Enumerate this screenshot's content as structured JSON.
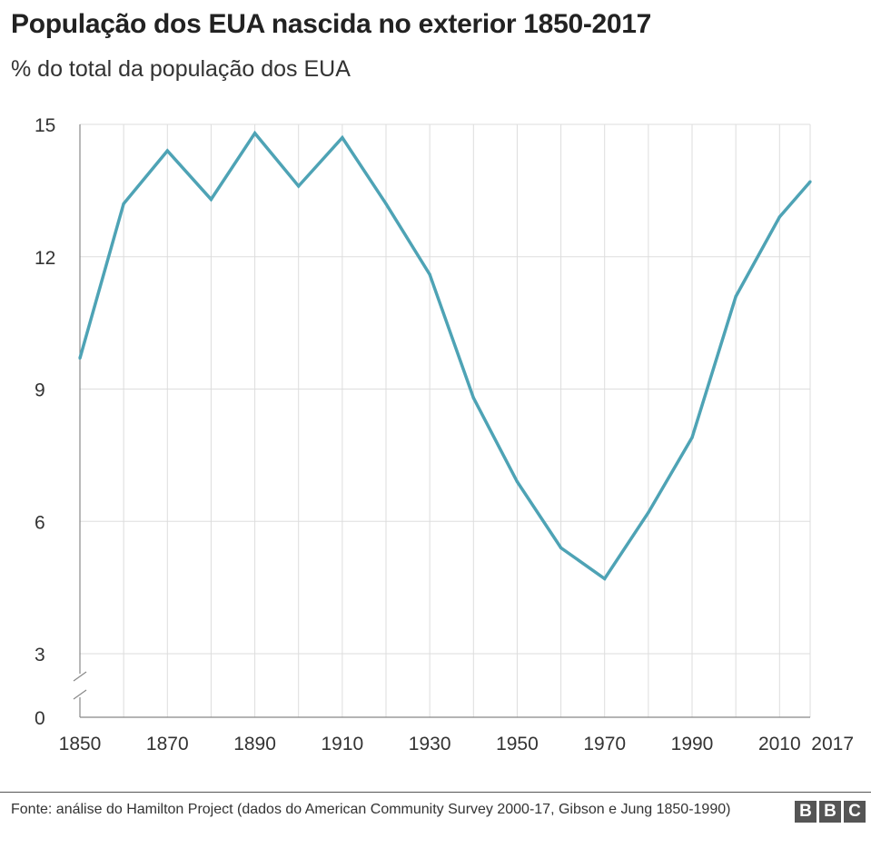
{
  "header": {
    "title": "População dos EUA nascida no exterior 1850-2017",
    "subtitle": "% do total da população dos EUA"
  },
  "footer": {
    "source": "Fonte: análise do Hamilton Project (dados do American Community Survey 2000-17, Gibson e Jung 1850-1990)",
    "logo_letters": [
      "B",
      "B",
      "C"
    ]
  },
  "colors": {
    "line": "#4ea3b5",
    "grid": "#dddddd",
    "axis": "#888888"
  },
  "chart_data": {
    "type": "line",
    "title": "População dos EUA nascida no exterior 1850-2017",
    "subtitle": "% do total da população dos EUA",
    "xlabel": "",
    "ylabel": "",
    "x": [
      1850,
      1860,
      1870,
      1880,
      1890,
      1900,
      1910,
      1920,
      1930,
      1940,
      1950,
      1960,
      1970,
      1980,
      1990,
      2000,
      2010,
      2017
    ],
    "series": [
      {
        "values": [
          9.7,
          13.2,
          14.4,
          13.3,
          14.8,
          13.6,
          14.7,
          13.2,
          11.6,
          8.8,
          6.9,
          5.4,
          4.7,
          6.2,
          7.9,
          11.1,
          12.9,
          13.7
        ]
      }
    ],
    "yticks": [
      0,
      3,
      6,
      9,
      12,
      15
    ],
    "xticks": [
      1850,
      1870,
      1890,
      1910,
      1930,
      1950,
      1970,
      1990,
      2010,
      2017
    ],
    "xlim": [
      1850,
      2017
    ],
    "ylim": [
      0,
      15
    ],
    "y_axis_break": true,
    "grid": true
  }
}
